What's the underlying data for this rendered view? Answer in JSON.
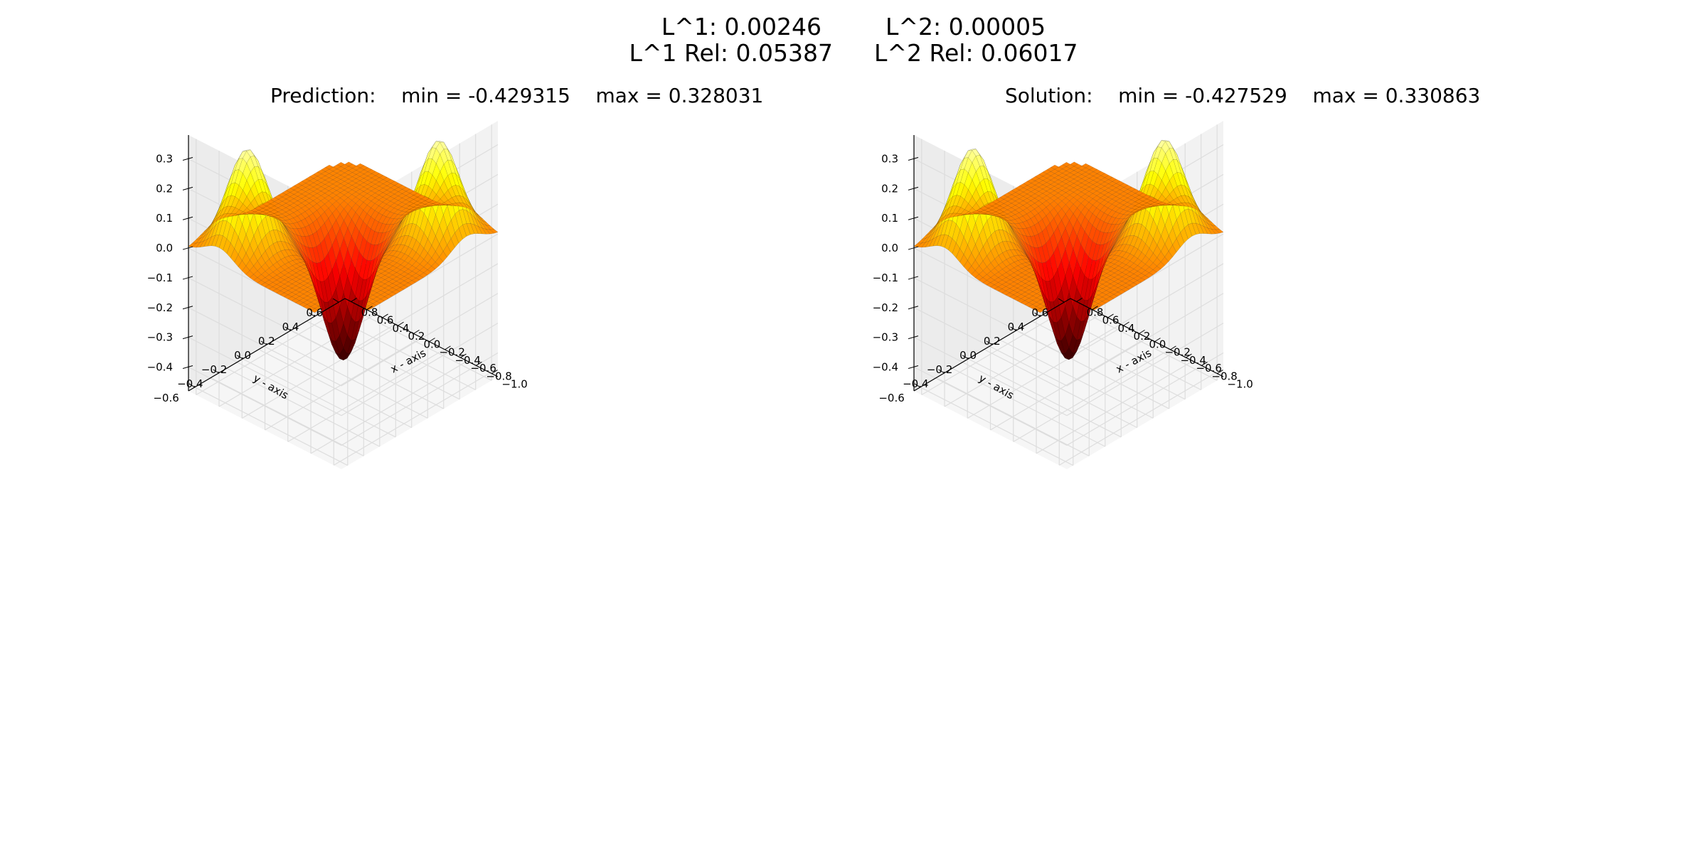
{
  "header": {
    "l1": "L^1: 0.00246",
    "l2": "L^2: 0.00005",
    "l1_rel": "L^1 Rel: 0.05387",
    "l2_rel": "L^2 Rel: 0.06017"
  },
  "colors": {
    "colormap": "hot",
    "pane_left": "#ececec",
    "pane_right": "#f2f2f2",
    "floor": "#f6f6f6",
    "grid": "#dddddd"
  },
  "chart_data": [
    {
      "type": "surface3d",
      "title": "Prediction:    min = -0.429315    max = 0.328031",
      "xlabel": "x - axis",
      "ylabel": "y - axis",
      "zlabel": "",
      "x_ticks": [
        "−1.0",
        "−0.8",
        "−0.6",
        "−0.4",
        "−0.2",
        "0.0",
        "0.2",
        "0.4",
        "0.6",
        "0.8"
      ],
      "y_ticks": [
        "−0.6",
        "−0.4",
        "−0.2",
        "0.0",
        "0.2",
        "0.4",
        "0.6"
      ],
      "z_ticks": [
        "−0.4",
        "−0.3",
        "−0.2",
        "−0.1",
        "0.0",
        "0.1",
        "0.2",
        "0.3"
      ],
      "xlim": [
        -1.0,
        0.8
      ],
      "ylim": [
        -0.6,
        0.6
      ],
      "zlim": [
        -0.48,
        0.38
      ],
      "zmin": -0.429315,
      "zmax": 0.328031,
      "grid": true
    },
    {
      "type": "surface3d",
      "title": "Solution:    min = -0.427529    max = 0.330863",
      "xlabel": "x - axis",
      "ylabel": "y - axis",
      "zlabel": "",
      "x_ticks": [
        "−1.0",
        "−0.8",
        "−0.6",
        "−0.4",
        "−0.2",
        "0.0",
        "0.2",
        "0.4",
        "0.6",
        "0.8"
      ],
      "y_ticks": [
        "−0.6",
        "−0.4",
        "−0.2",
        "0.0",
        "0.2",
        "0.4",
        "0.6"
      ],
      "z_ticks": [
        "−0.4",
        "−0.3",
        "−0.2",
        "−0.1",
        "0.0",
        "0.1",
        "0.2",
        "0.3"
      ],
      "xlim": [
        -1.0,
        0.8
      ],
      "ylim": [
        -0.6,
        0.6
      ],
      "zlim": [
        -0.48,
        0.38
      ],
      "zmin": -0.427529,
      "zmax": 0.330863,
      "grid": true
    }
  ]
}
